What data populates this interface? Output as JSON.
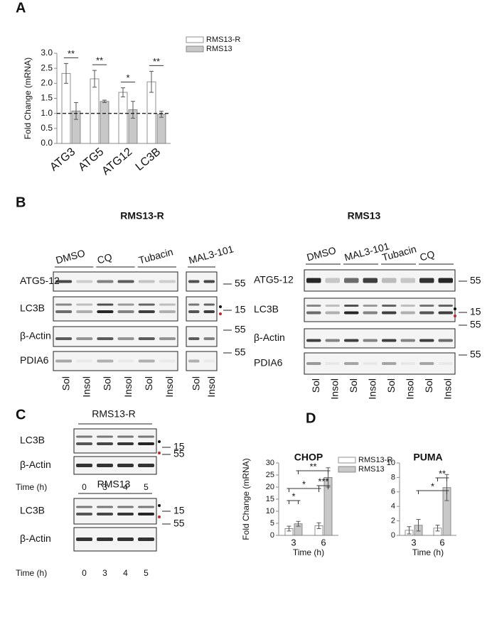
{
  "panels": [
    "A",
    "B",
    "C",
    "D"
  ],
  "chart_data": [
    {
      "type": "bar",
      "ylabel": "Fold Change (mRNA)",
      "categories": [
        "ATG3",
        "ATG5",
        "ATG12",
        "LC3B"
      ],
      "series": [
        {
          "name": "RMS13-R",
          "color": "#ffffff",
          "values": [
            2.33,
            2.15,
            1.7,
            2.05
          ],
          "errors": [
            0.33,
            0.28,
            0.15,
            0.35
          ]
        },
        {
          "name": "RMS13",
          "color": "#c8c8c8",
          "values": [
            1.08,
            1.4,
            1.12,
            0.97
          ],
          "errors": [
            0.28,
            0.04,
            0.28,
            0.1
          ]
        }
      ],
      "ylim": [
        0,
        3
      ],
      "yticks": [
        {
          "value": 0,
          "label": "0.0"
        },
        0.5,
        {
          "value": 1,
          "label": "1.0"
        },
        1.5,
        {
          "value": 2,
          "label": "2.0"
        },
        2.5,
        {
          "value": 3,
          "label": "3.0"
        }
      ],
      "reference_line": 1,
      "annotations": [
        "**",
        "**",
        "*",
        "**"
      ]
    },
    {
      "type": "bar",
      "title": "CHOP",
      "ylabel": "Fold Change (mRNA)",
      "xlabel": "Time (h)",
      "categories": [
        "3",
        "6"
      ],
      "series": [
        {
          "name": "RMS13-R",
          "color": "#ffffff",
          "values": [
            2.8,
            4
          ],
          "errors": [
            1,
            1.2
          ]
        },
        {
          "name": "RMS13",
          "color": "#c8c8c8",
          "values": [
            4.8,
            24
          ],
          "errors": [
            1,
            4
          ]
        }
      ],
      "ylim": [
        0,
        30
      ],
      "yticks": [
        0,
        5,
        10,
        15,
        20,
        25,
        30
      ],
      "annotations": [
        "*",
        "*",
        "**",
        "***"
      ]
    },
    {
      "type": "bar",
      "title": "PUMA",
      "xlabel": "Time (h)",
      "categories": [
        "3",
        "6"
      ],
      "series": [
        {
          "color": "#ffffff",
          "values": [
            0.7,
            1
          ],
          "errors": [
            0.5,
            0.4
          ]
        },
        {
          "color": "#c8c8c8",
          "values": [
            1.4,
            6.6
          ],
          "errors": [
            0.8,
            1.8
          ]
        }
      ],
      "ylim": [
        0,
        10
      ],
      "yticks": [
        0,
        2,
        4,
        6,
        8,
        10
      ],
      "annotations": [
        "*",
        "**"
      ]
    }
  ],
  "blot_b": [
    {
      "title": "RMS13-R",
      "treatments": [
        "DMSO",
        "CQ",
        "Tubacin",
        "MAL3-101"
      ],
      "rows": [
        "ATG5-12",
        "LC3B",
        "β-Actin",
        "PDIA6"
      ],
      "markers": [
        "55",
        "15",
        "55",
        "55"
      ],
      "lanes": [
        "Sol",
        "Insol",
        "Sol",
        "Insol",
        "Sol",
        "Insol",
        "Sol",
        "Insol"
      ]
    },
    {
      "title": "RMS13",
      "treatments": [
        "DMSO",
        "MAL3-101",
        "Tubacin",
        "CQ"
      ],
      "rows": [
        "ATG5-12",
        "LC3B",
        "β-Actin",
        "PDIA6"
      ],
      "markers": [
        "55",
        "15",
        "55",
        "55"
      ],
      "lanes": [
        "Sol",
        "Insol",
        "Sol",
        "Insol",
        "Sol",
        "Insol",
        "Sol",
        "Insol"
      ]
    }
  ],
  "blot_c": [
    {
      "title": "RMS13-R",
      "rows": [
        "LC3B",
        "β-Actin"
      ],
      "markers": [
        "15",
        "55"
      ],
      "time_label": "Time (h)",
      "times": [
        "0",
        "3",
        "4",
        "5"
      ]
    },
    {
      "title": "RMS13",
      "rows": [
        "LC3B",
        "β-Actin"
      ],
      "markers": [
        "15",
        "55"
      ],
      "time_label": "Time (h)",
      "times": [
        "0",
        "3",
        "4",
        "5"
      ]
    }
  ]
}
